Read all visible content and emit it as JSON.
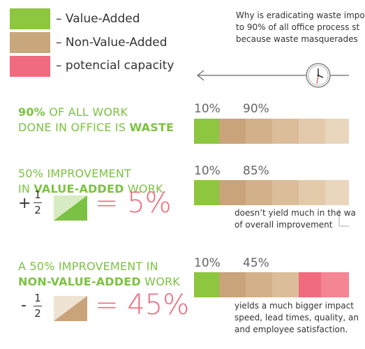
{
  "legend": [
    {
      "label": "– Value-Added",
      "color": "#8dc63f"
    },
    {
      "label": "– Non-Value-Added",
      "color": "#c9a77c"
    },
    {
      "label": "– potencial capacity",
      "color": "#f06b7e"
    }
  ],
  "intro": {
    "lines": [
      "Why is eradicating waste impo",
      "to 90% of all office process st",
      "because waste masquerades"
    ]
  },
  "sections": [
    {
      "heading_parts": [
        {
          "text": "90%",
          "bold": true
        },
        {
          "text": " OF ALL WORK",
          "bold": false
        }
      ],
      "heading_line2": [
        {
          "text": "DONE IN OFFICE IS ",
          "bold": false
        },
        {
          "text": "WASTE",
          "bold": true
        }
      ],
      "pct_left": "10%",
      "pct_right": "90%"
    },
    {
      "heading_parts": [
        {
          "text": "50% IMPROVEMENT",
          "bold": false
        }
      ],
      "heading_line2": [
        {
          "text": "IN ",
          "bold": false
        },
        {
          "text": "VALUE-ADDED",
          "bold": true
        },
        {
          "text": " WORK",
          "bold": false
        }
      ],
      "pct_left": "10%",
      "pct_right": "85%",
      "op": "+",
      "num": "1",
      "den": "2",
      "result": "= 5%",
      "desc_lines": [
        "doesn’t yield much in the wa",
        "of overall improvement"
      ]
    },
    {
      "heading_parts": [
        {
          "text": "A 50% IMPROVEMENT IN",
          "bold": false
        }
      ],
      "heading_line2": [
        {
          "text": "NON-VALUE-ADDED",
          "bold": true
        },
        {
          "text": " WORK",
          "bold": false
        }
      ],
      "pct_left": "10%",
      "pct_right": "45%",
      "op": "-",
      "num": "1",
      "den": "2",
      "result": "= 45%",
      "desc_lines": [
        "yields a much bigger impact",
        "speed, lead times, quality, an",
        "and employee satisfaction."
      ]
    }
  ]
}
